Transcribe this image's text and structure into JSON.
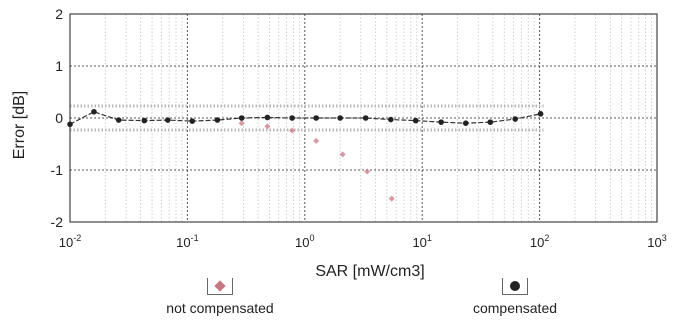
{
  "chart_data": {
    "type": "scatter",
    "x_scale": "log",
    "xlim": [
      0.01,
      1000
    ],
    "ylim": [
      -2,
      2
    ],
    "xlabel": "SAR [mW/cm3]",
    "ylabel": "Error [dB]",
    "x_ticks": [
      0.01,
      0.1,
      1,
      10,
      100,
      1000
    ],
    "x_tick_labels": [
      {
        "base": "10",
        "exp": "-2"
      },
      {
        "base": "10",
        "exp": "-1"
      },
      {
        "base": "10",
        "exp": "0"
      },
      {
        "base": "10",
        "exp": "1"
      },
      {
        "base": "10",
        "exp": "2"
      },
      {
        "base": "10",
        "exp": "3"
      }
    ],
    "y_ticks": [
      -2,
      -1,
      0,
      1,
      2
    ],
    "y_tick_labels": [
      "-2",
      "-1",
      "0",
      "1",
      "2"
    ],
    "grid": true,
    "uncertainty_band": [
      -0.23,
      0.23
    ],
    "legend_position": "bottom",
    "series": [
      {
        "name": "compensated",
        "marker": "circle",
        "color": "#222222",
        "connected": true,
        "x": [
          0.01,
          0.016,
          0.026,
          0.043,
          0.068,
          0.11,
          0.18,
          0.29,
          0.48,
          0.78,
          1.25,
          2.0,
          3.3,
          5.4,
          8.8,
          14.5,
          23.5,
          38,
          62,
          102
        ],
        "y": [
          -0.12,
          0.12,
          -0.04,
          -0.05,
          -0.04,
          -0.06,
          -0.04,
          0.0,
          0.01,
          0.0,
          0.0,
          0.0,
          0.0,
          -0.03,
          -0.05,
          -0.08,
          -0.1,
          -0.08,
          -0.02,
          0.08
        ]
      },
      {
        "name": "not compensated",
        "marker": "diamond",
        "color": "#c97683",
        "connected": false,
        "x": [
          0.29,
          0.48,
          0.78,
          1.25,
          2.1,
          3.4,
          5.5
        ],
        "y": [
          -0.1,
          -0.16,
          -0.24,
          -0.44,
          -0.7,
          -1.03,
          -1.55
        ]
      }
    ]
  },
  "legend": {
    "not_compensated_label": "not compensated",
    "compensated_label": "compensated"
  }
}
